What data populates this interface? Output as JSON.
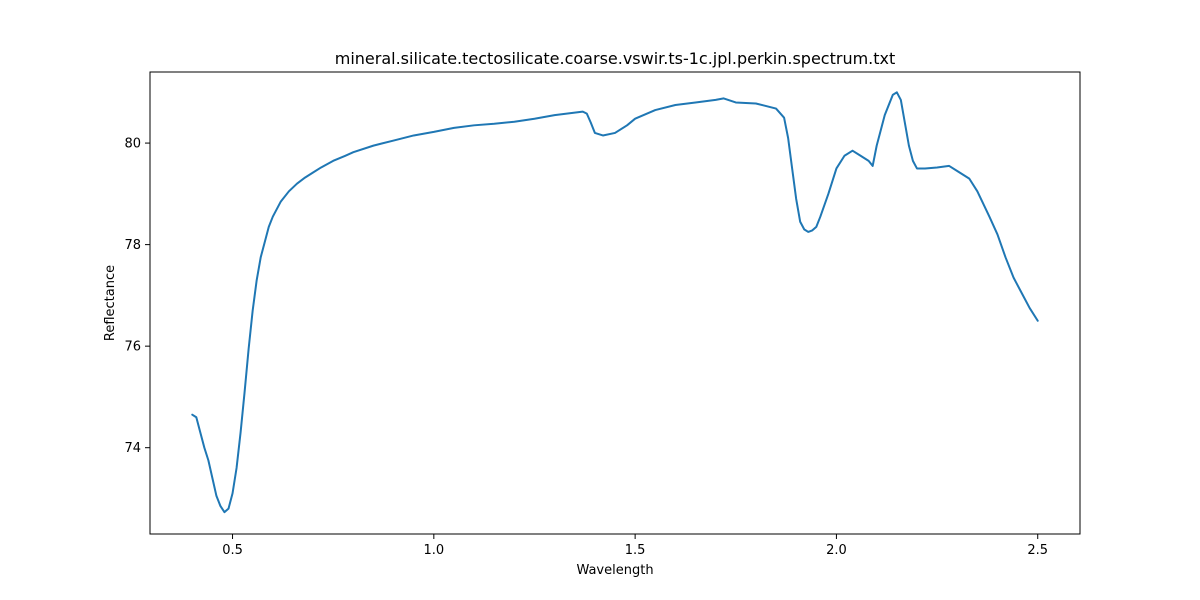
{
  "chart_data": {
    "type": "line",
    "title": "mineral.silicate.tectosilicate.coarse.vswir.ts-1c.jpl.perkin.spectrum.txt",
    "xlabel": "Wavelength",
    "ylabel": "Reflectance",
    "xlim": [
      0.295,
      2.605
    ],
    "ylim": [
      72.3,
      81.4
    ],
    "x_ticks": [
      0.5,
      1.0,
      1.5,
      2.0,
      2.5
    ],
    "x_tick_labels": [
      "0.5",
      "1.0",
      "1.5",
      "2.0",
      "2.5"
    ],
    "y_ticks": [
      74,
      76,
      78,
      80
    ],
    "y_tick_labels": [
      "74",
      "76",
      "78",
      "80"
    ],
    "grid": false,
    "color": "#1f77b4",
    "series": [
      {
        "x": [
          0.4,
          0.41,
          0.42,
          0.43,
          0.44,
          0.45,
          0.46,
          0.47,
          0.48,
          0.49,
          0.5,
          0.51,
          0.52,
          0.53,
          0.54,
          0.55,
          0.56,
          0.57,
          0.58,
          0.59,
          0.6,
          0.62,
          0.64,
          0.66,
          0.68,
          0.7,
          0.72,
          0.75,
          0.78,
          0.8,
          0.85,
          0.9,
          0.95,
          1.0,
          1.05,
          1.1,
          1.15,
          1.2,
          1.25,
          1.3,
          1.35,
          1.37,
          1.38,
          1.39,
          1.4,
          1.42,
          1.45,
          1.48,
          1.5,
          1.55,
          1.6,
          1.65,
          1.7,
          1.72,
          1.75,
          1.8,
          1.85,
          1.87,
          1.88,
          1.89,
          1.9,
          1.91,
          1.92,
          1.93,
          1.94,
          1.95,
          1.96,
          1.98,
          2.0,
          2.02,
          2.04,
          2.06,
          2.08,
          2.09,
          2.1,
          2.12,
          2.14,
          2.15,
          2.16,
          2.17,
          2.18,
          2.19,
          2.2,
          2.22,
          2.25,
          2.28,
          2.3,
          2.33,
          2.35,
          2.38,
          2.4,
          2.42,
          2.44,
          2.46,
          2.48,
          2.5
        ],
        "y": [
          74.65,
          74.6,
          74.3,
          74.0,
          73.75,
          73.4,
          73.05,
          72.85,
          72.73,
          72.8,
          73.1,
          73.6,
          74.3,
          75.1,
          75.95,
          76.7,
          77.3,
          77.75,
          78.05,
          78.35,
          78.55,
          78.85,
          79.05,
          79.2,
          79.32,
          79.42,
          79.52,
          79.65,
          79.75,
          79.82,
          79.95,
          80.05,
          80.15,
          80.22,
          80.3,
          80.35,
          80.38,
          80.42,
          80.48,
          80.55,
          80.6,
          80.62,
          80.58,
          80.4,
          80.2,
          80.15,
          80.2,
          80.35,
          80.48,
          80.65,
          80.75,
          80.8,
          80.85,
          80.88,
          80.8,
          80.78,
          80.68,
          80.5,
          80.1,
          79.5,
          78.9,
          78.45,
          78.3,
          78.25,
          78.28,
          78.35,
          78.55,
          79.0,
          79.5,
          79.75,
          79.85,
          79.75,
          79.65,
          79.55,
          79.95,
          80.55,
          80.95,
          81.0,
          80.85,
          80.4,
          79.95,
          79.65,
          79.5,
          79.5,
          79.52,
          79.55,
          79.45,
          79.3,
          79.05,
          78.55,
          78.2,
          77.75,
          77.35,
          77.05,
          76.75,
          76.5
        ]
      }
    ]
  }
}
